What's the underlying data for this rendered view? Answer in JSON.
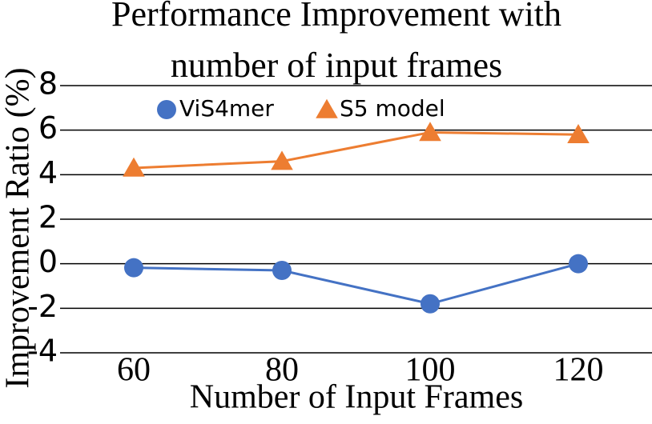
{
  "chart_data": {
    "type": "line",
    "title": [
      "Performance Improvement with",
      "number of input frames"
    ],
    "x_label": "Number of Input Frames",
    "y_label": "Improvement Ratio (%)",
    "categories": [
      "60",
      "80",
      "100",
      "120"
    ],
    "series": [
      {
        "name": "ViS4mer",
        "color": "#4472c4",
        "marker": "circle",
        "values": [
          -0.18,
          -0.3,
          -1.8,
          0.0
        ]
      },
      {
        "name": "S5 model",
        "color": "#ed7d31",
        "marker": "triangle",
        "values": [
          4.3,
          4.6,
          5.9,
          5.8
        ]
      }
    ],
    "ylim": [
      -4,
      8
    ],
    "yticks": [
      -4,
      -2,
      0,
      2,
      4,
      6,
      8
    ],
    "grid": true,
    "legend": "top"
  }
}
